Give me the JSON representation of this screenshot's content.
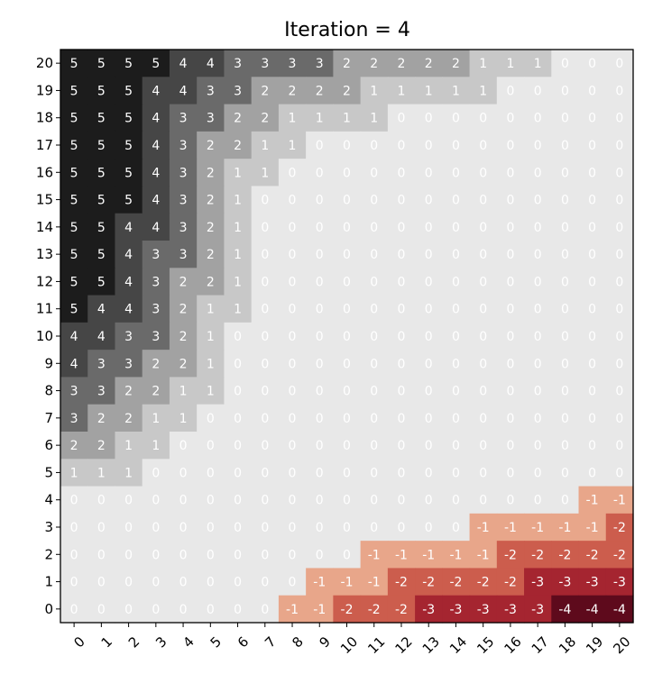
{
  "chart_data": {
    "type": "heatmap",
    "title": "Iteration = 4",
    "xlabel": "",
    "ylabel": "",
    "x_ticks": [
      0,
      1,
      2,
      3,
      4,
      5,
      6,
      7,
      8,
      9,
      10,
      11,
      12,
      13,
      14,
      15,
      16,
      17,
      18,
      19,
      20
    ],
    "y_ticks": [
      0,
      1,
      2,
      3,
      4,
      5,
      6,
      7,
      8,
      9,
      10,
      11,
      12,
      13,
      14,
      15,
      16,
      17,
      18,
      19,
      20
    ],
    "colorscale": {
      "positive": [
        "#e8e8e8",
        "#c8c8c8",
        "#a2a2a2",
        "#6a6a6a",
        "#464646",
        "#1c1c1c"
      ],
      "negative": [
        "#fbe9df",
        "#e8a68a",
        "#cc5d4d",
        "#a52530",
        "#5e0a1c"
      ]
    },
    "rows": [
      {
        "y": 20,
        "values": [
          5,
          5,
          5,
          5,
          4,
          4,
          3,
          3,
          3,
          3,
          2,
          2,
          2,
          2,
          2,
          1,
          1,
          1,
          0,
          0,
          0
        ]
      },
      {
        "y": 19,
        "values": [
          5,
          5,
          5,
          4,
          4,
          3,
          3,
          2,
          2,
          2,
          2,
          1,
          1,
          1,
          1,
          1,
          0,
          0,
          0,
          0,
          0
        ]
      },
      {
        "y": 18,
        "values": [
          5,
          5,
          5,
          4,
          3,
          3,
          2,
          2,
          1,
          1,
          1,
          1,
          0,
          0,
          0,
          0,
          0,
          0,
          0,
          0,
          0
        ]
      },
      {
        "y": 17,
        "values": [
          5,
          5,
          5,
          4,
          3,
          2,
          2,
          1,
          1,
          0,
          0,
          0,
          0,
          0,
          0,
          0,
          0,
          0,
          0,
          0,
          0
        ]
      },
      {
        "y": 16,
        "values": [
          5,
          5,
          5,
          4,
          3,
          2,
          1,
          1,
          0,
          0,
          0,
          0,
          0,
          0,
          0,
          0,
          0,
          0,
          0,
          0,
          0
        ]
      },
      {
        "y": 15,
        "values": [
          5,
          5,
          5,
          4,
          3,
          2,
          1,
          0,
          0,
          0,
          0,
          0,
          0,
          0,
          0,
          0,
          0,
          0,
          0,
          0,
          0
        ]
      },
      {
        "y": 14,
        "values": [
          5,
          5,
          4,
          4,
          3,
          2,
          1,
          0,
          0,
          0,
          0,
          0,
          0,
          0,
          0,
          0,
          0,
          0,
          0,
          0,
          0
        ]
      },
      {
        "y": 13,
        "values": [
          5,
          5,
          4,
          3,
          3,
          2,
          1,
          0,
          0,
          0,
          0,
          0,
          0,
          0,
          0,
          0,
          0,
          0,
          0,
          0,
          0
        ]
      },
      {
        "y": 12,
        "values": [
          5,
          5,
          4,
          3,
          2,
          2,
          1,
          0,
          0,
          0,
          0,
          0,
          0,
          0,
          0,
          0,
          0,
          0,
          0,
          0,
          0
        ]
      },
      {
        "y": 11,
        "values": [
          5,
          4,
          4,
          3,
          2,
          1,
          1,
          0,
          0,
          0,
          0,
          0,
          0,
          0,
          0,
          0,
          0,
          0,
          0,
          0,
          0
        ]
      },
      {
        "y": 10,
        "values": [
          4,
          4,
          3,
          3,
          2,
          1,
          0,
          0,
          0,
          0,
          0,
          0,
          0,
          0,
          0,
          0,
          0,
          0,
          0,
          0,
          0
        ]
      },
      {
        "y": 9,
        "values": [
          4,
          3,
          3,
          2,
          2,
          1,
          0,
          0,
          0,
          0,
          0,
          0,
          0,
          0,
          0,
          0,
          0,
          0,
          0,
          0,
          0
        ]
      },
      {
        "y": 8,
        "values": [
          3,
          3,
          2,
          2,
          1,
          1,
          0,
          0,
          0,
          0,
          0,
          0,
          0,
          0,
          0,
          0,
          0,
          0,
          0,
          0,
          0
        ]
      },
      {
        "y": 7,
        "values": [
          3,
          2,
          2,
          1,
          1,
          0,
          0,
          0,
          0,
          0,
          0,
          0,
          0,
          0,
          0,
          0,
          0,
          0,
          0,
          0,
          0
        ]
      },
      {
        "y": 6,
        "values": [
          2,
          2,
          1,
          1,
          0,
          0,
          0,
          0,
          0,
          0,
          0,
          0,
          0,
          0,
          0,
          0,
          0,
          0,
          0,
          0,
          0
        ]
      },
      {
        "y": 5,
        "values": [
          1,
          1,
          1,
          0,
          0,
          0,
          0,
          0,
          0,
          0,
          0,
          0,
          0,
          0,
          0,
          0,
          0,
          0,
          0,
          0,
          0
        ]
      },
      {
        "y": 4,
        "values": [
          0,
          0,
          0,
          0,
          0,
          0,
          0,
          0,
          0,
          0,
          0,
          0,
          0,
          0,
          0,
          0,
          0,
          0,
          0,
          -1,
          -1
        ]
      },
      {
        "y": 3,
        "values": [
          0,
          0,
          0,
          0,
          0,
          0,
          0,
          0,
          0,
          0,
          0,
          0,
          0,
          0,
          0,
          -1,
          -1,
          -1,
          -1,
          -1,
          -2
        ]
      },
      {
        "y": 2,
        "values": [
          0,
          0,
          0,
          0,
          0,
          0,
          0,
          0,
          0,
          0,
          0,
          -1,
          -1,
          -1,
          -1,
          -1,
          -2,
          -2,
          -2,
          -2,
          -2
        ]
      },
      {
        "y": 1,
        "values": [
          0,
          0,
          0,
          0,
          0,
          0,
          0,
          0,
          0,
          -1,
          -1,
          -1,
          -2,
          -2,
          -2,
          -2,
          -2,
          -3,
          -3,
          -3,
          -3
        ]
      },
      {
        "y": 0,
        "values": [
          0,
          0,
          0,
          0,
          0,
          0,
          0,
          0,
          -1,
          -1,
          -2,
          -2,
          -2,
          -3,
          -3,
          -3,
          -3,
          -3,
          -4,
          -4,
          -4
        ]
      }
    ]
  }
}
